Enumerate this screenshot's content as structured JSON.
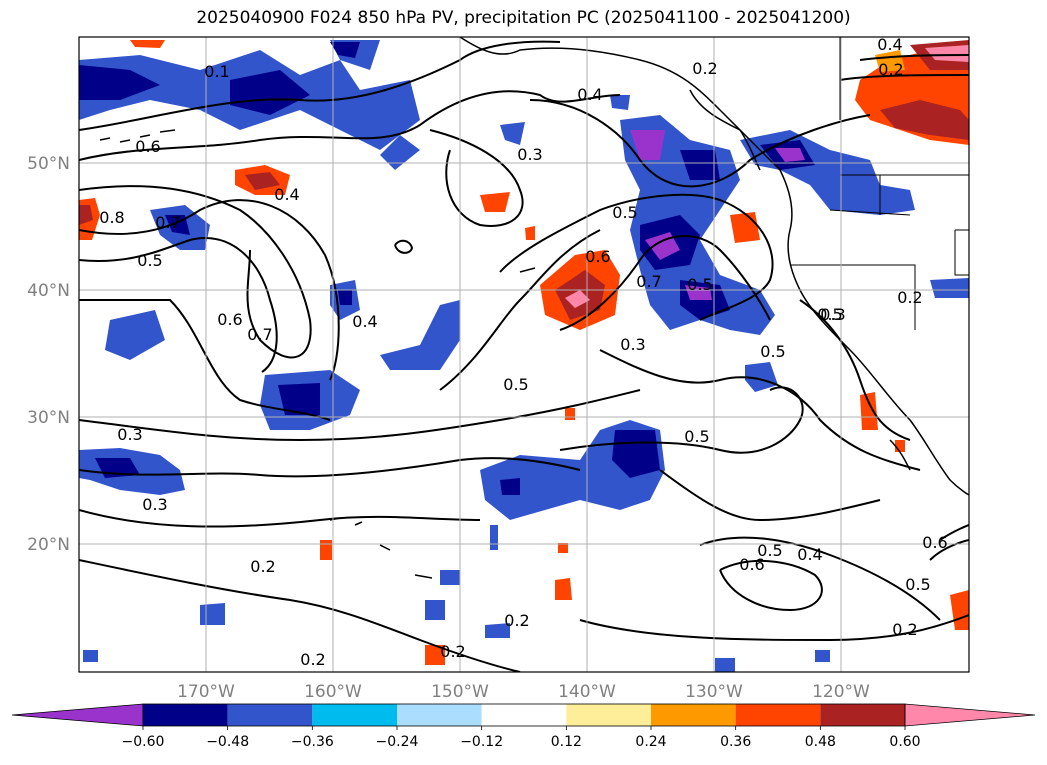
{
  "title": "2025040900 F024 850 hPa PV, precipitation PC (2025041100 - 2025041200)",
  "map": {
    "lon_labels": [
      "170°W",
      "160°W",
      "150°W",
      "140°W",
      "130°W",
      "120°W"
    ],
    "lat_labels": [
      "50°N",
      "40°N",
      "30°N",
      "20°N"
    ],
    "contour_labels": [
      "0.1",
      "0.4",
      "0.2",
      "0.4",
      "0.2",
      "0.6",
      "0.3",
      "0.8",
      "0.4",
      "0.7",
      "0.5",
      "0.5",
      "0.6",
      "0.6",
      "0.7",
      "0.4",
      "0.7",
      "0.3",
      "0.5",
      "0.3",
      "0.5",
      "0.5",
      "0.5",
      "0.2",
      "0.5",
      "0.3",
      "0.2",
      "0.5",
      "0.6",
      "0.4",
      "0.6",
      "0.5",
      "0.2",
      "0.2",
      "0.2",
      "0.2",
      "0.3"
    ]
  },
  "colorbar": {
    "colors": [
      "#9933cc",
      "#000088",
      "#3355cc",
      "#00bbee",
      "#aaddff",
      "#ffffff",
      "#ffee99",
      "#ff9900",
      "#ff4400",
      "#aa2222",
      "#ff88aa"
    ],
    "tick_labels": [
      "−0.60",
      "−0.48",
      "−0.36",
      "−0.24",
      "−0.12",
      "0.12",
      "0.24",
      "0.36",
      "0.48",
      "0.60"
    ]
  },
  "chart_data": {
    "type": "map",
    "title": "2025040900 F024 850 hPa PV, precipitation PC (2025041100 - 2025041200)",
    "x_axis": {
      "ticks": [
        "170°W",
        "160°W",
        "150°W",
        "140°W",
        "130°W",
        "120°W"
      ],
      "range": [
        -180,
        -110
      ]
    },
    "y_axis": {
      "ticks": [
        "50°N",
        "40°N",
        "30°N",
        "20°N"
      ],
      "range": [
        10,
        60
      ]
    },
    "colorbar_levels": [
      -0.6,
      -0.48,
      -0.36,
      -0.24,
      -0.12,
      0.12,
      0.24,
      0.36,
      0.48,
      0.6
    ],
    "grid": true
  }
}
